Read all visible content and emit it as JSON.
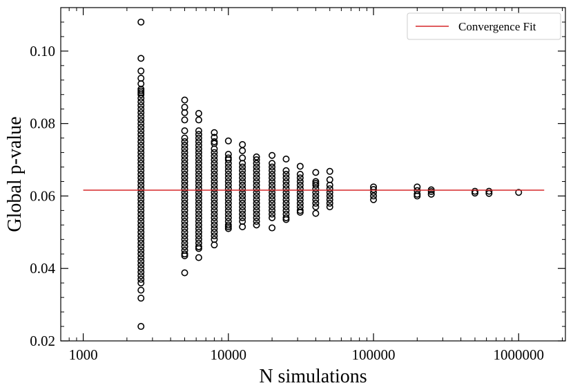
{
  "chart_data": {
    "type": "scatter",
    "xscale": "log",
    "xlabel": "N simulations",
    "ylabel": "Global p-value",
    "xlim": [
      700,
      2100000
    ],
    "ylim": [
      0.02,
      0.112
    ],
    "xticks": [
      1000,
      10000,
      100000,
      1000000
    ],
    "xtick_labels": [
      "1000",
      "10000",
      "100000",
      "1000000"
    ],
    "yticks": [
      0.02,
      0.04,
      0.06,
      0.08,
      0.1
    ],
    "ytick_labels": [
      "0.02",
      "0.04",
      "0.06",
      "0.08",
      "0.10"
    ],
    "legend": {
      "label": "Convergence Fit",
      "color": "#d62728",
      "location": "top-right"
    },
    "fit": {
      "name": "Convergence Fit",
      "value": 0.0616,
      "x_range": [
        1000,
        1500000
      ],
      "color": "#d62728"
    },
    "marker": {
      "shape": "open-circle",
      "color": "#000000"
    },
    "series": [
      {
        "x": 2500,
        "y": [
          0.108,
          0.098,
          0.0945,
          0.0925,
          0.091,
          0.0895,
          0.089,
          0.0885,
          0.088,
          0.087,
          0.086,
          0.085,
          0.084,
          0.083,
          0.082,
          0.081,
          0.08,
          0.079,
          0.078,
          0.077,
          0.076,
          0.075,
          0.074,
          0.073,
          0.072,
          0.071,
          0.07,
          0.069,
          0.068,
          0.067,
          0.066,
          0.065,
          0.064,
          0.063,
          0.062,
          0.061,
          0.06,
          0.059,
          0.058,
          0.057,
          0.056,
          0.055,
          0.054,
          0.053,
          0.052,
          0.051,
          0.05,
          0.049,
          0.048,
          0.047,
          0.046,
          0.045,
          0.044,
          0.043,
          0.042,
          0.041,
          0.04,
          0.039,
          0.038,
          0.037,
          0.036,
          0.034,
          0.0318,
          0.024
        ]
      },
      {
        "x": 5000,
        "y": [
          0.0865,
          0.0845,
          0.083,
          0.081,
          0.078,
          0.076,
          0.075,
          0.074,
          0.073,
          0.072,
          0.071,
          0.07,
          0.069,
          0.068,
          0.067,
          0.066,
          0.065,
          0.064,
          0.063,
          0.062,
          0.061,
          0.06,
          0.059,
          0.058,
          0.057,
          0.056,
          0.055,
          0.054,
          0.053,
          0.052,
          0.051,
          0.05,
          0.049,
          0.048,
          0.047,
          0.046,
          0.045,
          0.044,
          0.0435,
          0.0388
        ]
      },
      {
        "x": 6250,
        "y": [
          0.0828,
          0.081,
          0.078,
          0.077,
          0.076,
          0.075,
          0.074,
          0.073,
          0.072,
          0.071,
          0.07,
          0.069,
          0.068,
          0.067,
          0.066,
          0.065,
          0.064,
          0.063,
          0.062,
          0.061,
          0.06,
          0.059,
          0.058,
          0.057,
          0.056,
          0.055,
          0.054,
          0.053,
          0.052,
          0.051,
          0.05,
          0.049,
          0.048,
          0.047,
          0.046,
          0.0455,
          0.043
        ]
      },
      {
        "x": 8000,
        "y": [
          0.0775,
          0.0762,
          0.075,
          0.0745,
          0.073,
          0.072,
          0.071,
          0.07,
          0.069,
          0.068,
          0.067,
          0.066,
          0.065,
          0.064,
          0.063,
          0.062,
          0.061,
          0.06,
          0.059,
          0.058,
          0.057,
          0.056,
          0.055,
          0.054,
          0.053,
          0.052,
          0.051,
          0.05,
          0.049,
          0.048,
          0.0465
        ]
      },
      {
        "x": 10000,
        "y": [
          0.0752,
          0.0715,
          0.0705,
          0.07,
          0.069,
          0.068,
          0.067,
          0.066,
          0.065,
          0.064,
          0.063,
          0.062,
          0.061,
          0.06,
          0.059,
          0.058,
          0.057,
          0.056,
          0.055,
          0.054,
          0.053,
          0.052,
          0.0515,
          0.051
        ]
      },
      {
        "x": 12500,
        "y": [
          0.0742,
          0.0725,
          0.0705,
          0.069,
          0.068,
          0.067,
          0.066,
          0.065,
          0.064,
          0.063,
          0.062,
          0.061,
          0.06,
          0.059,
          0.058,
          0.057,
          0.056,
          0.055,
          0.054,
          0.053,
          0.0515
        ]
      },
      {
        "x": 15625,
        "y": [
          0.0708,
          0.07,
          0.069,
          0.068,
          0.067,
          0.066,
          0.065,
          0.064,
          0.063,
          0.062,
          0.061,
          0.06,
          0.059,
          0.058,
          0.057,
          0.056,
          0.055,
          0.054,
          0.053,
          0.052
        ]
      },
      {
        "x": 20000,
        "y": [
          0.0712,
          0.069,
          0.068,
          0.067,
          0.066,
          0.065,
          0.064,
          0.063,
          0.062,
          0.061,
          0.06,
          0.059,
          0.058,
          0.057,
          0.056,
          0.055,
          0.054,
          0.0512
        ]
      },
      {
        "x": 25000,
        "y": [
          0.0702,
          0.067,
          0.066,
          0.065,
          0.064,
          0.063,
          0.062,
          0.061,
          0.06,
          0.059,
          0.058,
          0.057,
          0.056,
          0.055,
          0.054,
          0.0535
        ]
      },
      {
        "x": 31250,
        "y": [
          0.0682,
          0.066,
          0.065,
          0.064,
          0.063,
          0.062,
          0.061,
          0.06,
          0.059,
          0.058,
          0.057,
          0.056,
          0.0555
        ]
      },
      {
        "x": 40000,
        "y": [
          0.0665,
          0.064,
          0.0635,
          0.063,
          0.062,
          0.061,
          0.06,
          0.059,
          0.058,
          0.057,
          0.0552
        ]
      },
      {
        "x": 50000,
        "y": [
          0.0668,
          0.0645,
          0.063,
          0.062,
          0.061,
          0.06,
          0.059,
          0.058,
          0.057
        ]
      },
      {
        "x": 100000,
        "y": [
          0.0625,
          0.0618,
          0.061,
          0.06,
          0.059
        ]
      },
      {
        "x": 200000,
        "y": [
          0.0625,
          0.0615,
          0.0605,
          0.06
        ]
      },
      {
        "x": 250000,
        "y": [
          0.0617,
          0.0612,
          0.0605
        ]
      },
      {
        "x": 500000,
        "y": [
          0.0613,
          0.0608
        ]
      },
      {
        "x": 625000,
        "y": [
          0.0613,
          0.0607
        ]
      },
      {
        "x": 1000000,
        "y": [
          0.061
        ]
      }
    ]
  }
}
